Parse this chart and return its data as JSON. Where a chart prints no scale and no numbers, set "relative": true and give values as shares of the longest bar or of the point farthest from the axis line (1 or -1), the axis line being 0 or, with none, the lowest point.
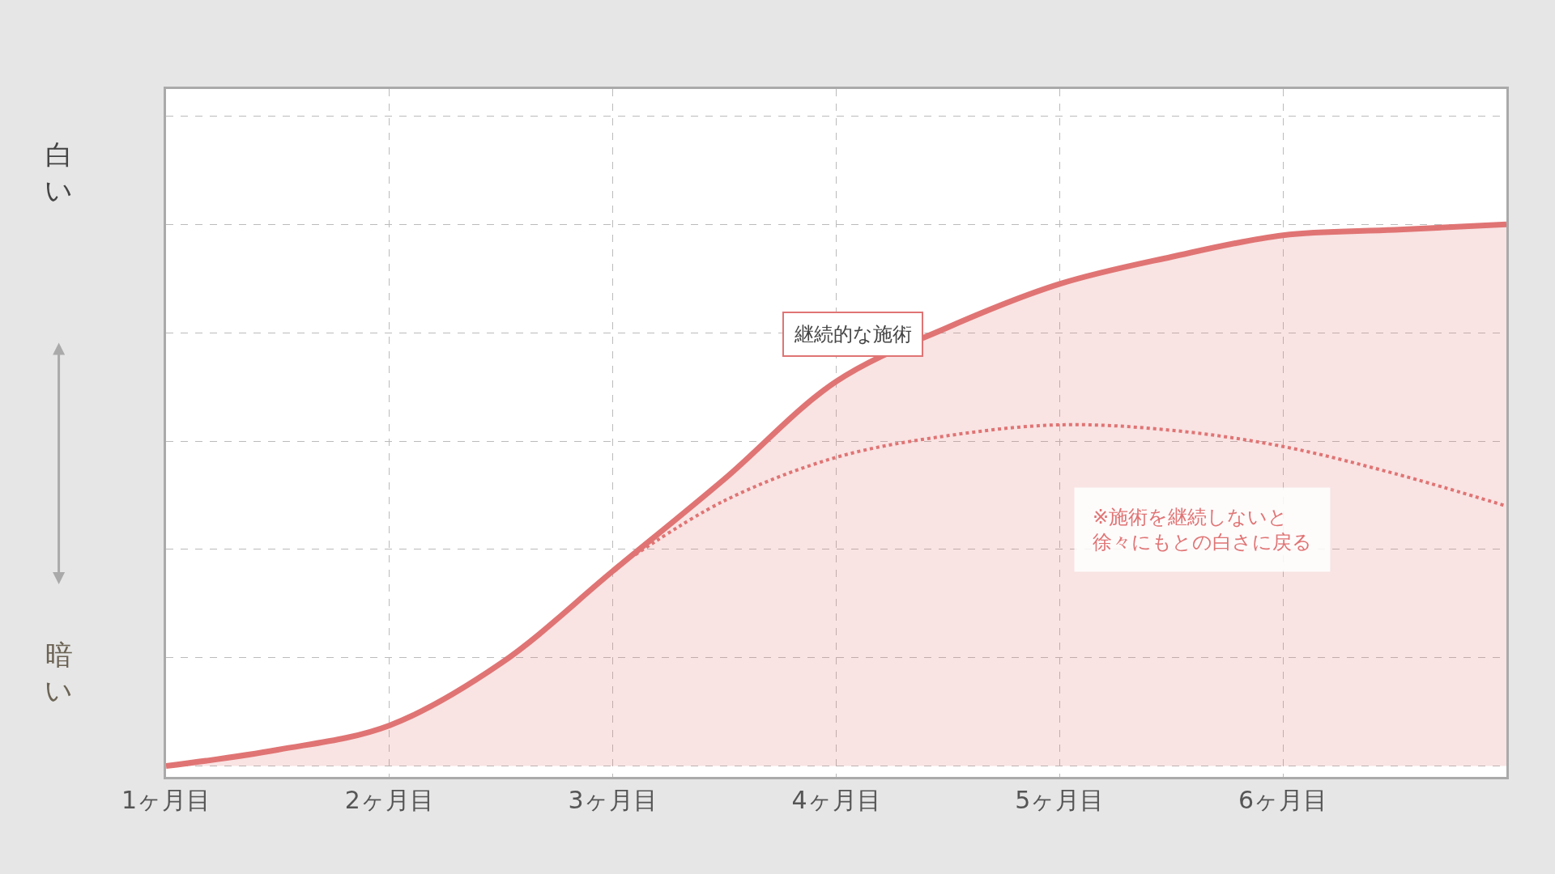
{
  "chart_data": {
    "type": "line",
    "relative": true,
    "xlim": [
      1,
      7
    ],
    "xticks": [
      {
        "value": 1,
        "label": "1ヶ月目"
      },
      {
        "value": 2,
        "label": "2ヶ月目"
      },
      {
        "value": 3,
        "label": "3ヶ月目"
      },
      {
        "value": 4,
        "label": "4ヶ月目"
      },
      {
        "value": 5,
        "label": "5ヶ月目"
      },
      {
        "value": 6,
        "label": "6ヶ月目"
      }
    ],
    "annotations": [
      "白い",
      "暗い"
    ],
    "series": [
      {
        "name": "継続的な施術",
        "type": "area",
        "color": "#e07474",
        "line_style": "solid",
        "x": [
          1,
          1.5,
          2,
          2.5,
          3,
          3.5,
          4,
          4.5,
          5,
          5.5,
          6,
          6.5,
          7
        ],
        "values": [
          0,
          0.03,
          0.075,
          0.19,
          0.36,
          0.53,
          0.71,
          0.81,
          0.89,
          0.94,
          0.98,
          0.99,
          1
        ]
      },
      {
        "name": "※施術を継続しないと徐々にもとの白さに戻る",
        "color": "#e07474",
        "line_style": "dotted",
        "x": [
          3.1,
          3.5,
          4,
          4.5,
          5,
          5.5,
          6,
          6.5,
          7
        ],
        "values": [
          0.39,
          0.49,
          0.57,
          0.61,
          0.63,
          0.62,
          0.59,
          0.54,
          0.48
        ]
      }
    ],
    "grid": true,
    "legend": false
  }
}
